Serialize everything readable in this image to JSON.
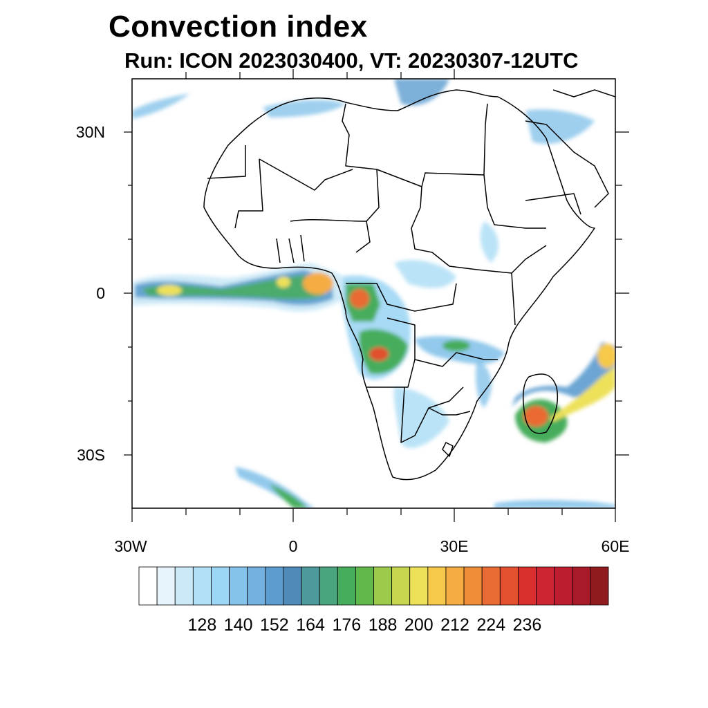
{
  "title": "Convection index",
  "subtitle": "Run: ICON 2023030400,  VT: 20230307-12UTC",
  "lat_labels": [
    {
      "value": 30,
      "text": "30N"
    },
    {
      "value": 0,
      "text": "0"
    },
    {
      "value": -30,
      "text": "30S"
    }
  ],
  "lon_labels": [
    {
      "value": -30,
      "text": "30W"
    },
    {
      "value": 0,
      "text": "0"
    },
    {
      "value": 30,
      "text": "30E"
    },
    {
      "value": 60,
      "text": "60E"
    }
  ],
  "extent": {
    "lon": [
      -30,
      60
    ],
    "lat": [
      -40,
      40
    ]
  },
  "colorbar": {
    "colors": [
      "#ffffff",
      "#e7f4fb",
      "#cbe9f7",
      "#b2e0f6",
      "#9dd6f4",
      "#86c3ea",
      "#72b1e0",
      "#5c9ccf",
      "#4f8ab9",
      "#4c9a9b",
      "#4aa57f",
      "#46ad5c",
      "#61b94c",
      "#9ccb4c",
      "#c8d54e",
      "#ede15a",
      "#f6c94a",
      "#f5ac42",
      "#f08d39",
      "#ea6b33",
      "#e2502f",
      "#d9302e",
      "#cc2632",
      "#bc1e30",
      "#a81a28",
      "#8f1b1f"
    ],
    "labels": [
      "128",
      "140",
      "152",
      "164",
      "176",
      "188",
      "200",
      "212",
      "224",
      "236"
    ]
  },
  "chart_data": {
    "type": "heatmap",
    "title": "Convection index",
    "subtitle": "Run: ICON 2023030400,  VT: 20230307-12UTC",
    "xlim": [
      -30,
      60
    ],
    "ylim": [
      -40,
      40
    ],
    "x_ticks": [
      "30W",
      "0",
      "30E",
      "60E"
    ],
    "y_ticks": [
      "30N",
      "0",
      "30S"
    ],
    "colorbar_ticks": [
      128,
      140,
      152,
      164,
      176,
      188,
      200,
      212,
      224,
      236
    ]
  }
}
